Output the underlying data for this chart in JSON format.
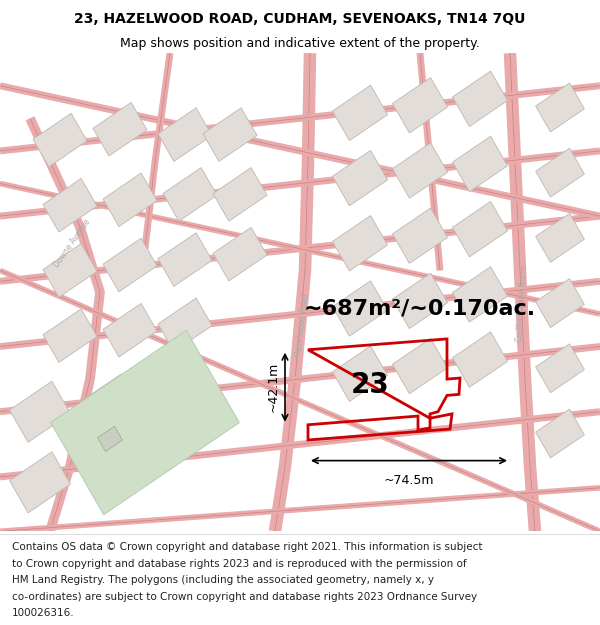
{
  "title_line1": "23, HAZELWOOD ROAD, CUDHAM, SEVENOAKS, TN14 7QU",
  "title_line2": "Map shows position and indicative extent of the property.",
  "area_text": "~687m²/~0.170ac.",
  "number_label": "23",
  "dim_height": "~42.1m",
  "dim_width": "~74.5m",
  "footer_lines": [
    "Contains OS data © Crown copyright and database right 2021. This information is subject",
    "to Crown copyright and database rights 2023 and is reproduced with the permission of",
    "HM Land Registry. The polygons (including the associated geometry, namely x, y",
    "co-ordinates) are subject to Crown copyright and database rights 2023 Ordnance Survey",
    "100026316."
  ],
  "map_bg": "#f7f4f0",
  "road_color": "#e8aaaa",
  "road_edge": "#d08080",
  "building_fill": "#e2ddd8",
  "building_edge": "#c0b8b0",
  "green_fill": "#d0dfc8",
  "green_edge": "#b0c8a8",
  "red_polygon_color": "#cc0000",
  "title_fontsize": 10,
  "subtitle_fontsize": 9,
  "area_fontsize": 16,
  "number_fontsize": 20,
  "dim_fontsize": 9,
  "footer_fontsize": 7.5,
  "road_label_color": "#aaaaaa",
  "road_label_size": 5.5
}
